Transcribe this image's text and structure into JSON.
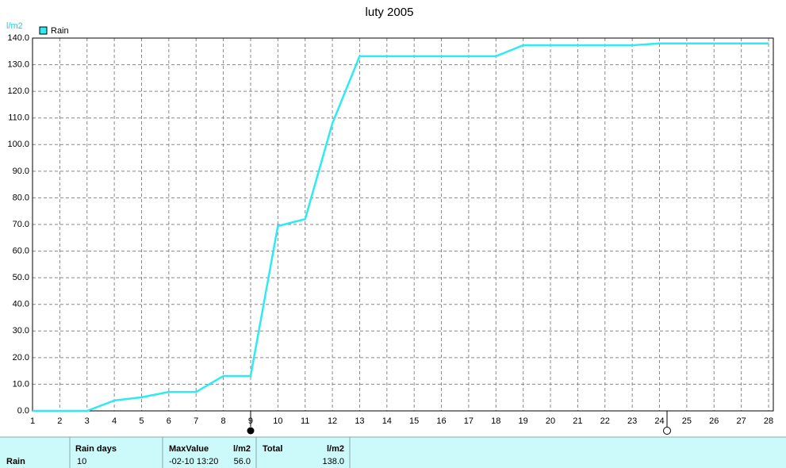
{
  "chart_data": {
    "type": "line",
    "title": "luty 2005",
    "y_unit": "l/m2",
    "x": [
      1,
      2,
      3,
      4,
      5,
      6,
      7,
      8,
      9,
      10,
      11,
      12,
      13,
      14,
      15,
      16,
      17,
      18,
      19,
      20,
      21,
      22,
      23,
      24,
      25,
      26,
      27,
      28
    ],
    "series": [
      {
        "name": "Rain",
        "color": "#2eeaf2",
        "values": [
          0,
          0,
          0,
          3.9,
          5.1,
          7.1,
          7.1,
          13.1,
          13.1,
          69.4,
          72,
          108,
          133.2,
          133.2,
          133.2,
          133.2,
          133.2,
          133.2,
          137.3,
          137.3,
          137.3,
          137.3,
          137.3,
          138,
          138,
          138,
          138,
          138
        ]
      }
    ],
    "xlim": [
      1,
      28
    ],
    "xticks": [
      1,
      2,
      3,
      4,
      5,
      6,
      7,
      8,
      9,
      10,
      11,
      12,
      13,
      14,
      15,
      16,
      17,
      18,
      19,
      20,
      21,
      22,
      23,
      24,
      25,
      26,
      27,
      28
    ],
    "ylim": [
      0,
      140
    ],
    "yticks": [
      {
        "value": 0,
        "label": "0.0"
      },
      {
        "value": 10,
        "label": "10.0"
      },
      {
        "value": 20,
        "label": "20.0"
      },
      {
        "value": 30,
        "label": "30.0"
      },
      {
        "value": 40,
        "label": "40.0"
      },
      {
        "value": 50,
        "label": "50.0"
      },
      {
        "value": 60,
        "label": "60.0"
      },
      {
        "value": 70,
        "label": "70.0"
      },
      {
        "value": 80,
        "label": "80.0"
      },
      {
        "value": 90,
        "label": "90.0"
      },
      {
        "value": 100,
        "label": "100.0"
      },
      {
        "value": 110,
        "label": "110.0"
      },
      {
        "value": 120,
        "label": "120.0"
      },
      {
        "value": 130,
        "label": "130.0"
      },
      {
        "value": 140,
        "label": "140.0"
      }
    ],
    "grid": true
  },
  "summary": {
    "row_label": "Rain",
    "rain_days_header": "Rain days",
    "rain_days": "10",
    "max_header": "MaxValue",
    "max_unit": "l/m2",
    "max_time": "-02-10  13:20",
    "max_value": "56.0",
    "total_header": "Total",
    "total_unit": "l/m2",
    "total_value": "138.0"
  }
}
